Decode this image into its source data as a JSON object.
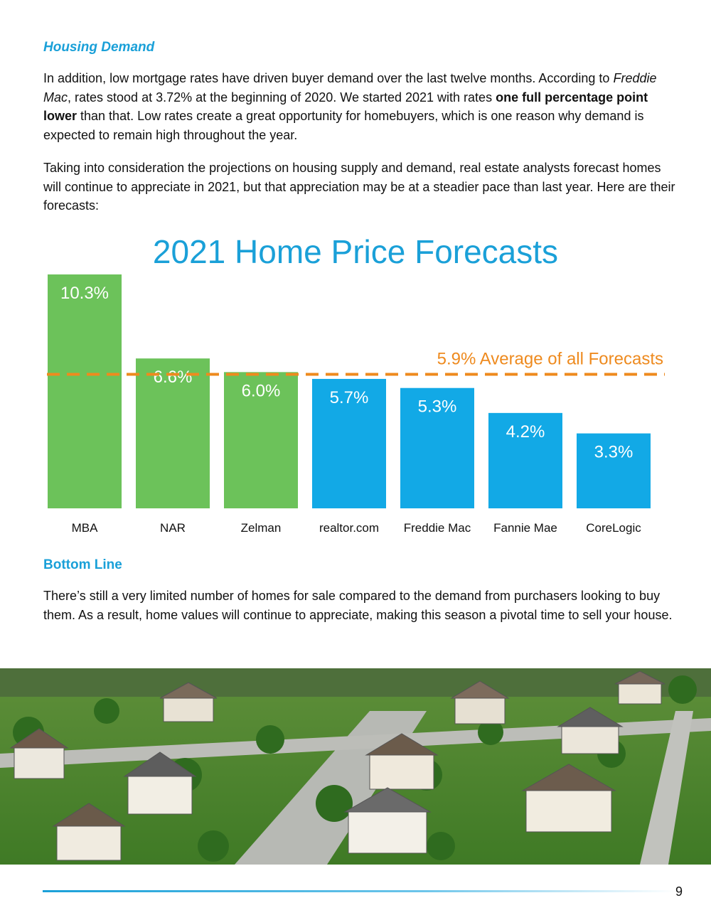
{
  "sections": {
    "housing_demand": {
      "heading": "Housing Demand",
      "p1": {
        "t1": "In addition, low mortgage rates have driven buyer demand over the last twelve months. According to ",
        "t2": "Freddie Mac",
        "t3": ", rates stood at 3.72% at the beginning of 2020. We started 2021 with rates ",
        "t4": "one full percentage point lower",
        "t5": " than that. Low rates create a great opportunity for homebuyers, which is one reason why demand is expected to remain high throughout the year."
      },
      "p2": "Taking into consideration the projections on housing supply and demand, real estate analysts forecast homes will continue to appreciate in 2021, but that appreciation may be at a steadier pace than last year. Here are their forecasts:"
    },
    "bottom_line": {
      "heading": "Bottom Line",
      "p": "There’s still a very limited number of homes for sale compared to the demand from purchasers looking to buy them. As a result, home values will continue to appreciate, making this season a pivotal time to sell your house."
    }
  },
  "chart_data": {
    "type": "bar",
    "title": "2021 Home Price Forecasts",
    "categories": [
      "MBA",
      "NAR",
      "Zelman",
      "realtor.com",
      "Freddie Mac",
      "Fannie Mae",
      "CoreLogic"
    ],
    "values": [
      10.3,
      6.6,
      6.0,
      5.7,
      5.3,
      4.2,
      3.3
    ],
    "value_labels": [
      "10.3%",
      "6.6%",
      "6.0%",
      "5.7%",
      "5.3%",
      "4.2%",
      "3.3%"
    ],
    "bar_colors": [
      "#6cc25a",
      "#6cc25a",
      "#6cc25a",
      "#12a9e6",
      "#12a9e6",
      "#12a9e6",
      "#12a9e6"
    ],
    "average": 5.9,
    "average_label": "5.9% Average of all Forecasts",
    "average_color": "#ee8a1e",
    "ylim": [
      0,
      10.3
    ],
    "xlabel": "",
    "ylabel": "",
    "grid": false
  },
  "colors": {
    "accent": "#1aa0d8",
    "green": "#6cc25a",
    "blue": "#12a9e6",
    "orange": "#ee8a1e"
  },
  "footer": {
    "page_number": "9"
  }
}
